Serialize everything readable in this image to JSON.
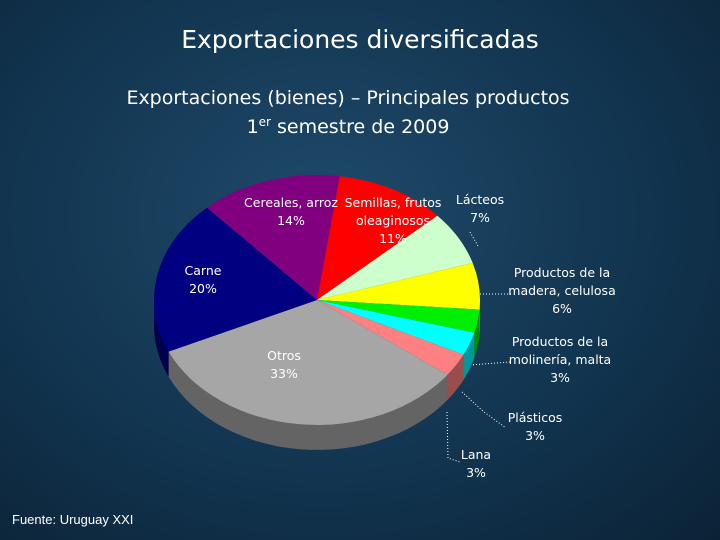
{
  "title": "Exportaciones diversificadas",
  "source": "Fuente: Uruguay XXI",
  "chart_data": {
    "type": "pie",
    "title": "Exportaciones (bienes) – Principales productos",
    "subtitle": {
      "base": "1",
      "sup": "er",
      "rest": " semestre de 2009"
    },
    "categories": [
      "Semillas, frutos oleaginosos",
      "Lácteos",
      "Productos de la madera, celulosa",
      "Productos de la molinería, malta",
      "Plásticos",
      "Lana",
      "Otros",
      "Carne",
      "Cereales, arroz"
    ],
    "values": [
      11,
      7,
      6,
      3,
      3,
      3,
      33,
      20,
      14
    ],
    "value_labels": [
      "11%",
      "7%",
      "6%",
      "3%",
      "3%",
      "3%",
      "33%",
      "20%",
      "14%"
    ],
    "colors": [
      "#ff0000",
      "#ccffcc",
      "#ffff00",
      "#00ee00",
      "#00ffff",
      "#ff8080",
      "#a6a6a6",
      "#000080",
      "#800080"
    ]
  }
}
